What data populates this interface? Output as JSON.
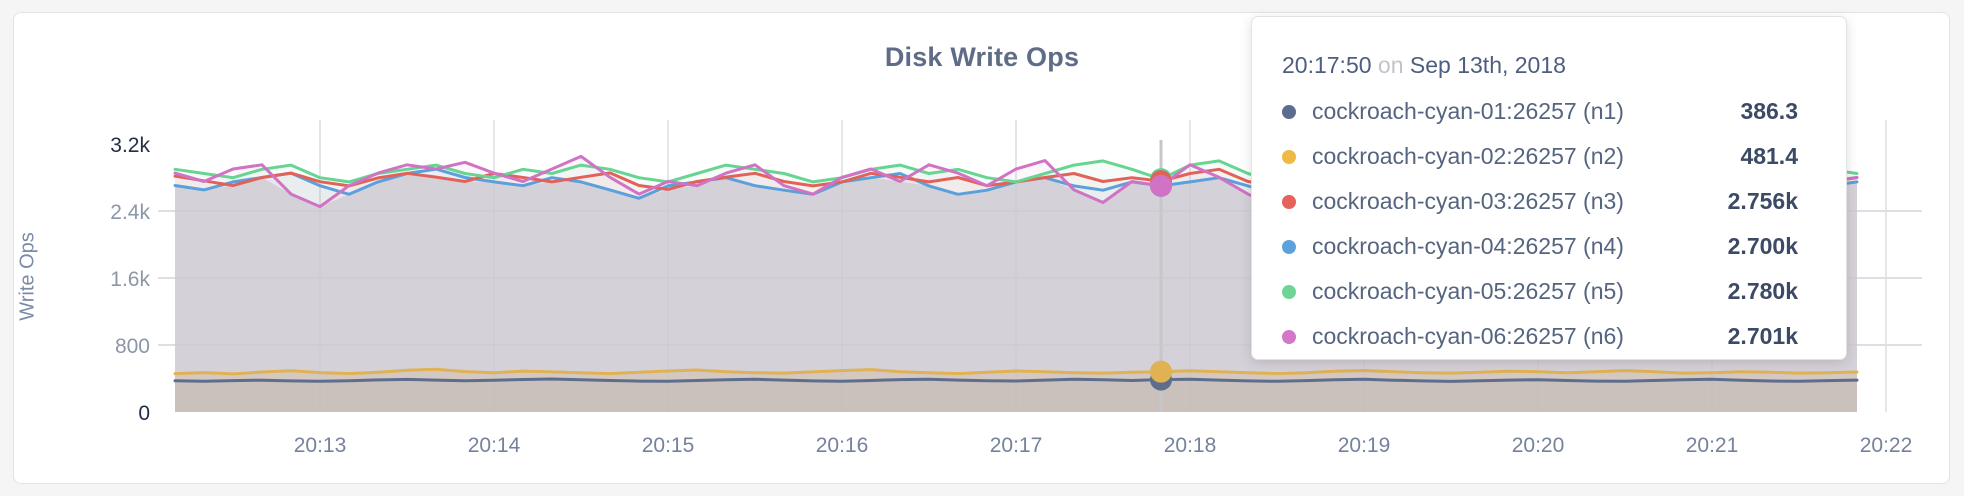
{
  "card": {
    "background": "#ffffff",
    "border_color": "#e3e3e5"
  },
  "tooltip": {
    "time": "20:17:50",
    "conjunction": "on",
    "date": "Sep 13th, 2018",
    "rows": [
      {
        "label": "cockroach-cyan-01:26257 (n1)",
        "value": "386.3",
        "color": "#5b6c90"
      },
      {
        "label": "cockroach-cyan-02:26257 (n2)",
        "value": "481.4",
        "color": "#ecba45"
      },
      {
        "label": "cockroach-cyan-03:26257 (n3)",
        "value": "2.756k",
        "color": "#e6625c"
      },
      {
        "label": "cockroach-cyan-04:26257 (n4)",
        "value": "2.700k",
        "color": "#5ca2dc"
      },
      {
        "label": "cockroach-cyan-05:26257 (n5)",
        "value": "2.780k",
        "color": "#6ed694"
      },
      {
        "label": "cockroach-cyan-06:26257 (n6)",
        "value": "2.701k",
        "color": "#d577c8"
      }
    ]
  },
  "chart_data": {
    "type": "line",
    "title": "Disk Write Ops",
    "ylabel": "Write Ops",
    "xlabel": "",
    "grid": true,
    "ylim": [
      0,
      3200
    ],
    "y_ticks": [
      {
        "value": 0,
        "label": "0",
        "emphasis": true
      },
      {
        "value": 800,
        "label": "800",
        "emphasis": false
      },
      {
        "value": 1600,
        "label": "1.6k",
        "emphasis": false
      },
      {
        "value": 2400,
        "label": "2.4k",
        "emphasis": false
      },
      {
        "value": 3200,
        "label": "3.2k",
        "emphasis": true
      }
    ],
    "x_tick_labels": [
      "20:13",
      "20:14",
      "20:15",
      "20:16",
      "20:17",
      "20:18",
      "20:19",
      "20:20",
      "20:21",
      "20:22"
    ],
    "sample_interval_seconds": 10,
    "first_sample_time": "20:12:10",
    "hover_time": "20:17:50",
    "hover_index": 34,
    "base_area_color": "#e6e5e8",
    "hover_line_color": "#c7c7ca",
    "grid_color": "#dfdfe3",
    "series": [
      {
        "name": "cockroach-cyan-01:26257 (n1)",
        "color": "#5f6d8c",
        "area_opacity": 0.1,
        "hover_value": 386.3,
        "values": [
          372,
          368,
          375,
          380,
          371,
          366,
          374,
          383,
          389,
          381,
          373,
          378,
          388,
          394,
          386,
          376,
          369,
          366,
          376,
          386,
          391,
          381,
          371,
          366,
          376,
          387,
          391,
          381,
          374,
          370,
          381,
          390,
          384,
          376,
          386.3,
          391,
          381,
          371,
          366,
          375,
          386,
          390,
          380,
          371,
          365,
          374,
          381,
          386,
          376,
          369,
          366,
          376,
          386,
          391,
          380,
          370,
          366,
          375,
          381
        ]
      },
      {
        "name": "cockroach-cyan-02:26257 (n2)",
        "color": "#e0b253",
        "area_opacity": 0.18,
        "hover_value": 481.4,
        "values": [
          458,
          471,
          455,
          478,
          492,
          470,
          459,
          474,
          498,
          510,
          482,
          468,
          488,
          479,
          469,
          459,
          474,
          489,
          502,
          481,
          469,
          464,
          479,
          494,
          506,
          481,
          469,
          459,
          474,
          489,
          481,
          469,
          464,
          474,
          481.4,
          492,
          481,
          469,
          459,
          469,
          486,
          496,
          481,
          469,
          464,
          474,
          486,
          481,
          469,
          481,
          494,
          481,
          464,
          469,
          481,
          474,
          464,
          469,
          478
        ]
      },
      {
        "name": "cockroach-cyan-03:26257 (n3)",
        "color": "#e2625a",
        "area_opacity": 0.06,
        "hover_value": 2756,
        "values": [
          2815,
          2760,
          2705,
          2800,
          2852,
          2750,
          2700,
          2795,
          2850,
          2805,
          2752,
          2848,
          2800,
          2748,
          2802,
          2855,
          2705,
          2658,
          2752,
          2805,
          2850,
          2752,
          2700,
          2748,
          2850,
          2802,
          2748,
          2800,
          2702,
          2748,
          2800,
          2848,
          2752,
          2798,
          2756,
          2848,
          2898,
          2752,
          2700,
          2748,
          2800,
          2852,
          2945,
          2800,
          2748,
          2700,
          2752,
          2800,
          2848,
          2748,
          2700,
          2655,
          2748,
          2800,
          2848,
          2752,
          2798,
          2748,
          2798
        ]
      },
      {
        "name": "cockroach-cyan-04:26257 (n4)",
        "color": "#5ba0da",
        "area_opacity": 0.06,
        "hover_value": 2700,
        "values": [
          2705,
          2652,
          2748,
          2800,
          2852,
          2702,
          2600,
          2748,
          2848,
          2900,
          2800,
          2748,
          2702,
          2798,
          2748,
          2652,
          2552,
          2700,
          2748,
          2798,
          2702,
          2648,
          2600,
          2748,
          2798,
          2848,
          2700,
          2600,
          2648,
          2748,
          2798,
          2700,
          2648,
          2748,
          2700,
          2748,
          2798,
          2700,
          2600,
          2648,
          2748,
          2700,
          2798,
          2848,
          2702,
          2648,
          2600,
          2702,
          2748,
          2798,
          2898,
          2748,
          2648,
          2700,
          2748,
          2700,
          2648,
          2700,
          2748
        ]
      },
      {
        "name": "cockroach-cyan-05:26257 (n5)",
        "color": "#68d492",
        "area_opacity": 0.06,
        "hover_value": 2780,
        "values": [
          2898,
          2848,
          2798,
          2898,
          2948,
          2798,
          2748,
          2848,
          2898,
          2948,
          2848,
          2798,
          2898,
          2848,
          2948,
          2898,
          2798,
          2748,
          2848,
          2948,
          2898,
          2848,
          2748,
          2798,
          2898,
          2948,
          2848,
          2898,
          2798,
          2748,
          2848,
          2948,
          2998,
          2898,
          2780,
          2948,
          2998,
          2848,
          2748,
          2798,
          2898,
          2848,
          2948,
          2898,
          2798,
          2848,
          2748,
          2898,
          2948,
          2848,
          2798,
          2748,
          2848,
          2898,
          2948,
          2798,
          2848,
          2898,
          2848
        ]
      },
      {
        "name": "cockroach-cyan-06:26257 (n6)",
        "color": "#d073c4",
        "area_opacity": 0.06,
        "hover_value": 2701,
        "values": [
          2852,
          2752,
          2902,
          2952,
          2602,
          2452,
          2702,
          2852,
          2952,
          2902,
          2982,
          2852,
          2752,
          2902,
          3052,
          2802,
          2602,
          2752,
          2702,
          2852,
          2952,
          2702,
          2602,
          2802,
          2902,
          2752,
          2952,
          2852,
          2702,
          2902,
          3002,
          2652,
          2502,
          2752,
          2701,
          2952,
          2802,
          2602,
          2452,
          2702,
          2952,
          3082,
          2702,
          2552,
          2752,
          2852,
          2702,
          2952,
          2802,
          2652,
          2502,
          2702,
          2902,
          3052,
          2852,
          2702,
          2602,
          2752,
          2802
        ]
      }
    ]
  }
}
